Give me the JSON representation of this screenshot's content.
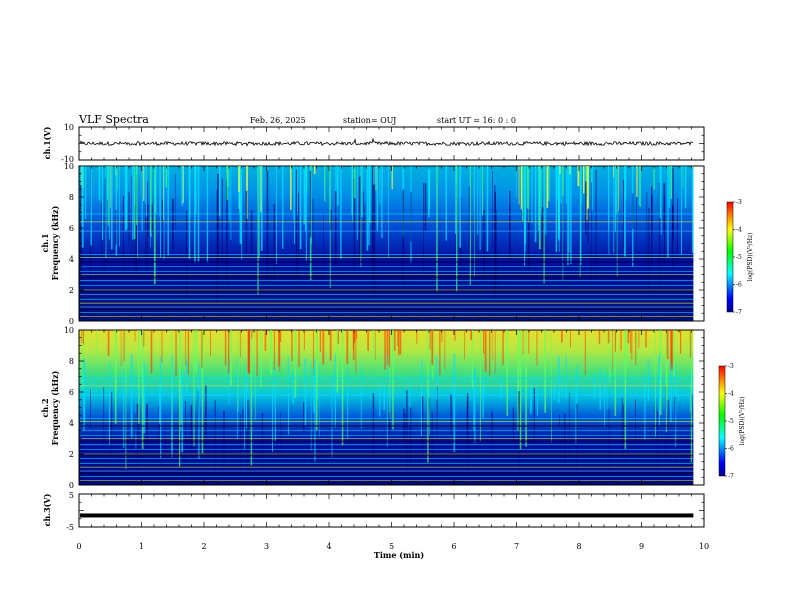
{
  "header": {
    "title": "VLF Spectra",
    "date": "Feb. 26, 2025",
    "station": "station= OUJ",
    "start": "start  UT =   16: 0  : 0"
  },
  "chart_data": [
    {
      "type": "line",
      "panel": "ch1-waveform",
      "ylabel": "ch.1(V)",
      "ylim": [
        -10,
        10
      ],
      "ytick_labels": [
        "10",
        "-10"
      ],
      "trace_level": 0,
      "color": "#000000"
    },
    {
      "type": "heatmap",
      "panel": "ch1-spectrogram",
      "ylabel": "ch.1\nFrequency (kHz)",
      "ylim": [
        0,
        10
      ],
      "ytick_labels": [
        "0",
        "2",
        "4",
        "6",
        "8",
        "10"
      ],
      "colorbar": {
        "label": "log(PSD)(V²/Hz)",
        "range": [
          -7,
          -3
        ],
        "tick_labels": [
          "-3",
          "-4",
          "-5",
          "-6",
          "-7"
        ]
      }
    },
    {
      "type": "heatmap",
      "panel": "ch2-spectrogram",
      "ylabel": "ch.2\nFrequency (kHz)",
      "ylim": [
        0,
        10
      ],
      "ytick_labels": [
        "0",
        "2",
        "4",
        "6",
        "8",
        "10"
      ],
      "colorbar": {
        "label": "log(PSD)(V²/Hz)",
        "range": [
          -7,
          -3
        ],
        "tick_labels": [
          "-3",
          "-4",
          "-5",
          "-6",
          "-7"
        ]
      }
    },
    {
      "type": "line",
      "panel": "ch3-waveform",
      "ylabel": "ch.3(V)",
      "ylim": [
        -5,
        5
      ],
      "ytick_labels": [
        "5",
        "-5"
      ],
      "trace_level": -1.5,
      "color": "#000000"
    }
  ],
  "x_axis": {
    "xlabel": "Time (min)",
    "xlim": [
      0,
      10
    ],
    "tick_labels": [
      "0",
      "1",
      "2",
      "3",
      "4",
      "5",
      "6",
      "7",
      "8",
      "9",
      "10"
    ],
    "data_end": 9.83
  }
}
